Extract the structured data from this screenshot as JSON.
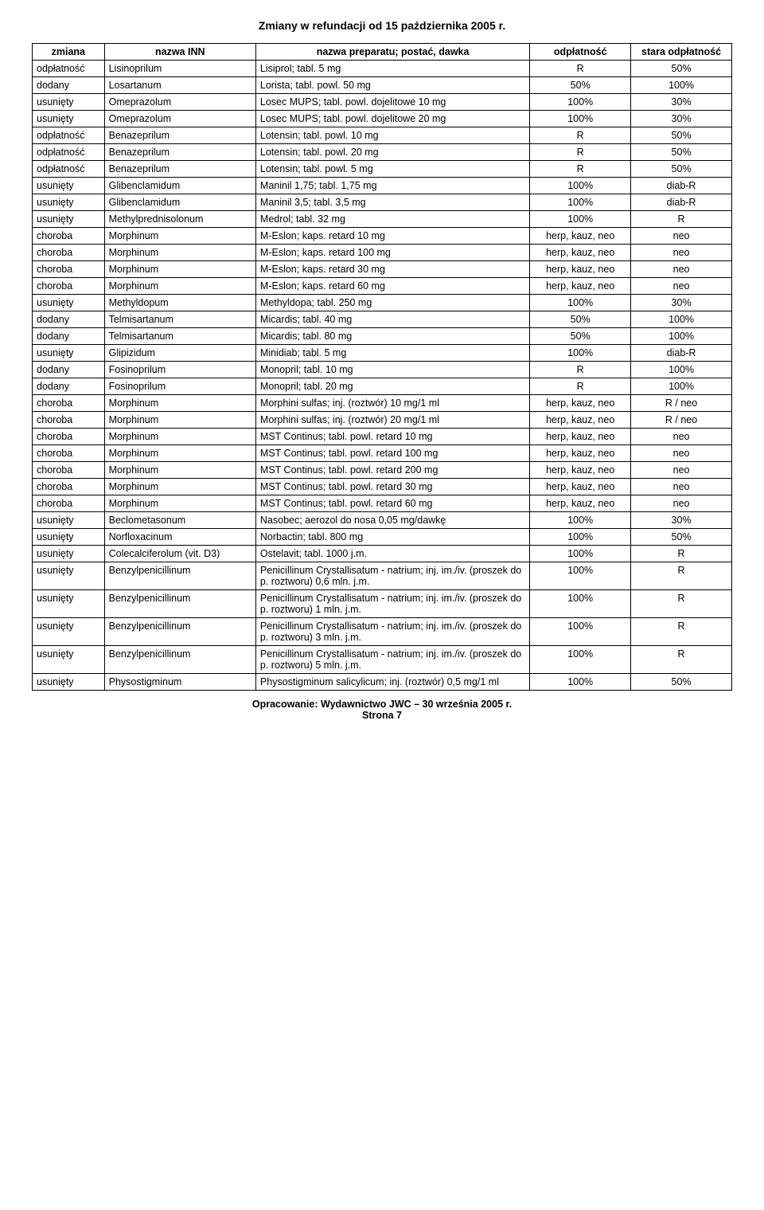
{
  "page_title": "Zmiany w refundacji od 15 października 2005 r.",
  "columns": {
    "zmiana": "zmiana",
    "inn": "nazwa INN",
    "prep": "nazwa preparatu; postać, dawka",
    "odp": "odpłatność",
    "stara": "stara odpłatność"
  },
  "footer_line1": "Opracowanie: Wydawnictwo JWC – 30 września 2005 r.",
  "footer_line2": "Strona 7",
  "rows": [
    {
      "z": "odpłatność",
      "i": "Lisinoprilum",
      "p": "Lisiprol; tabl. 5 mg",
      "o": "R",
      "s": "50%"
    },
    {
      "z": "dodany",
      "i": "Losartanum",
      "p": "Lorista; tabl. powl. 50 mg",
      "o": "50%",
      "s": "100%"
    },
    {
      "z": "usunięty",
      "i": "Omeprazolum",
      "p": "Losec MUPS; tabl. powl. dojelitowe 10 mg",
      "o": "100%",
      "s": "30%"
    },
    {
      "z": "usunięty",
      "i": "Omeprazolum",
      "p": "Losec MUPS; tabl. powl. dojelitowe 20 mg",
      "o": "100%",
      "s": "30%"
    },
    {
      "z": "odpłatność",
      "i": "Benazeprilum",
      "p": "Lotensin; tabl. powl. 10 mg",
      "o": "R",
      "s": "50%"
    },
    {
      "z": "odpłatność",
      "i": "Benazeprilum",
      "p": "Lotensin; tabl. powl. 20 mg",
      "o": "R",
      "s": "50%"
    },
    {
      "z": "odpłatność",
      "i": "Benazeprilum",
      "p": "Lotensin; tabl. powl. 5 mg",
      "o": "R",
      "s": "50%"
    },
    {
      "z": "usunięty",
      "i": "Glibenclamidum",
      "p": "Maninil 1,75; tabl. 1,75 mg",
      "o": "100%",
      "s": "diab-R"
    },
    {
      "z": "usunięty",
      "i": "Glibenclamidum",
      "p": "Maninil 3,5; tabl. 3,5 mg",
      "o": "100%",
      "s": "diab-R"
    },
    {
      "z": "usunięty",
      "i": "Methylprednisolonum",
      "p": "Medrol; tabl. 32 mg",
      "o": "100%",
      "s": "R"
    },
    {
      "z": "choroba",
      "i": "Morphinum",
      "p": "M-Eslon; kaps. retard 10 mg",
      "o": "herp, kauz, neo",
      "s": "neo"
    },
    {
      "z": "choroba",
      "i": "Morphinum",
      "p": "M-Eslon; kaps. retard 100 mg",
      "o": "herp, kauz, neo",
      "s": "neo"
    },
    {
      "z": "choroba",
      "i": "Morphinum",
      "p": "M-Eslon; kaps. retard 30 mg",
      "o": "herp, kauz, neo",
      "s": "neo"
    },
    {
      "z": "choroba",
      "i": "Morphinum",
      "p": "M-Eslon; kaps. retard 60 mg",
      "o": "herp, kauz, neo",
      "s": "neo"
    },
    {
      "z": "usunięty",
      "i": "Methyldopum",
      "p": "Methyldopa; tabl. 250 mg",
      "o": "100%",
      "s": "30%"
    },
    {
      "z": "dodany",
      "i": "Telmisartanum",
      "p": "Micardis; tabl. 40 mg",
      "o": "50%",
      "s": "100%"
    },
    {
      "z": "dodany",
      "i": "Telmisartanum",
      "p": "Micardis; tabl. 80 mg",
      "o": "50%",
      "s": "100%"
    },
    {
      "z": "usunięty",
      "i": "Glipizidum",
      "p": "Minidiab; tabl. 5 mg",
      "o": "100%",
      "s": "diab-R"
    },
    {
      "z": "dodany",
      "i": "Fosinoprilum",
      "p": "Monopril; tabl. 10 mg",
      "o": "R",
      "s": "100%"
    },
    {
      "z": "dodany",
      "i": "Fosinoprilum",
      "p": "Monopril; tabl. 20 mg",
      "o": "R",
      "s": "100%"
    },
    {
      "z": "choroba",
      "i": "Morphinum",
      "p": "Morphini sulfas; inj. (roztwór) 10 mg/1 ml",
      "o": "herp, kauz, neo",
      "s": "R / neo"
    },
    {
      "z": "choroba",
      "i": "Morphinum",
      "p": "Morphini sulfas; inj. (roztwór) 20 mg/1 ml",
      "o": "herp, kauz, neo",
      "s": "R / neo"
    },
    {
      "z": "choroba",
      "i": "Morphinum",
      "p": "MST Continus; tabl. powl. retard 10 mg",
      "o": "herp, kauz, neo",
      "s": "neo"
    },
    {
      "z": "choroba",
      "i": "Morphinum",
      "p": "MST Continus; tabl. powl. retard 100 mg",
      "o": "herp, kauz, neo",
      "s": "neo"
    },
    {
      "z": "choroba",
      "i": "Morphinum",
      "p": "MST Continus; tabl. powl. retard 200 mg",
      "o": "herp, kauz, neo",
      "s": "neo"
    },
    {
      "z": "choroba",
      "i": "Morphinum",
      "p": "MST Continus; tabl. powl. retard 30 mg",
      "o": "herp, kauz, neo",
      "s": "neo"
    },
    {
      "z": "choroba",
      "i": "Morphinum",
      "p": "MST Continus; tabl. powl. retard 60 mg",
      "o": "herp, kauz, neo",
      "s": "neo"
    },
    {
      "z": "usunięty",
      "i": "Beclometasonum",
      "p": "Nasobec; aerozol do nosa 0,05 mg/dawkę",
      "o": "100%",
      "s": "30%"
    },
    {
      "z": "usunięty",
      "i": "Norfloxacinum",
      "p": "Norbactin; tabl. 800 mg",
      "o": "100%",
      "s": "50%"
    },
    {
      "z": "usunięty",
      "i": "Colecalciferolum (vit. D3)",
      "p": "Ostelavit; tabl. 1000 j.m.",
      "o": "100%",
      "s": "R"
    },
    {
      "z": "usunięty",
      "i": "Benzylpenicillinum",
      "p": "Penicillinum Crystallisatum - natrium; inj. im./iv. (proszek do p. roztworu) 0,6 mln. j.m.",
      "o": "100%",
      "s": "R"
    },
    {
      "z": "usunięty",
      "i": "Benzylpenicillinum",
      "p": "Penicillinum Crystallisatum - natrium; inj. im./iv. (proszek do p. roztworu) 1 mln. j.m.",
      "o": "100%",
      "s": "R"
    },
    {
      "z": "usunięty",
      "i": "Benzylpenicillinum",
      "p": "Penicillinum Crystallisatum - natrium; inj. im./iv. (proszek do p. roztworu) 3 mln. j.m.",
      "o": "100%",
      "s": "R"
    },
    {
      "z": "usunięty",
      "i": "Benzylpenicillinum",
      "p": "Penicillinum Crystallisatum - natrium; inj. im./iv. (proszek do p. roztworu) 5 mln. j.m.",
      "o": "100%",
      "s": "R"
    },
    {
      "z": "usunięty",
      "i": "Physostigminum",
      "p": "Physostigminum salicylicum; inj. (roztwór) 0,5 mg/1 ml",
      "o": "100%",
      "s": "50%"
    }
  ]
}
